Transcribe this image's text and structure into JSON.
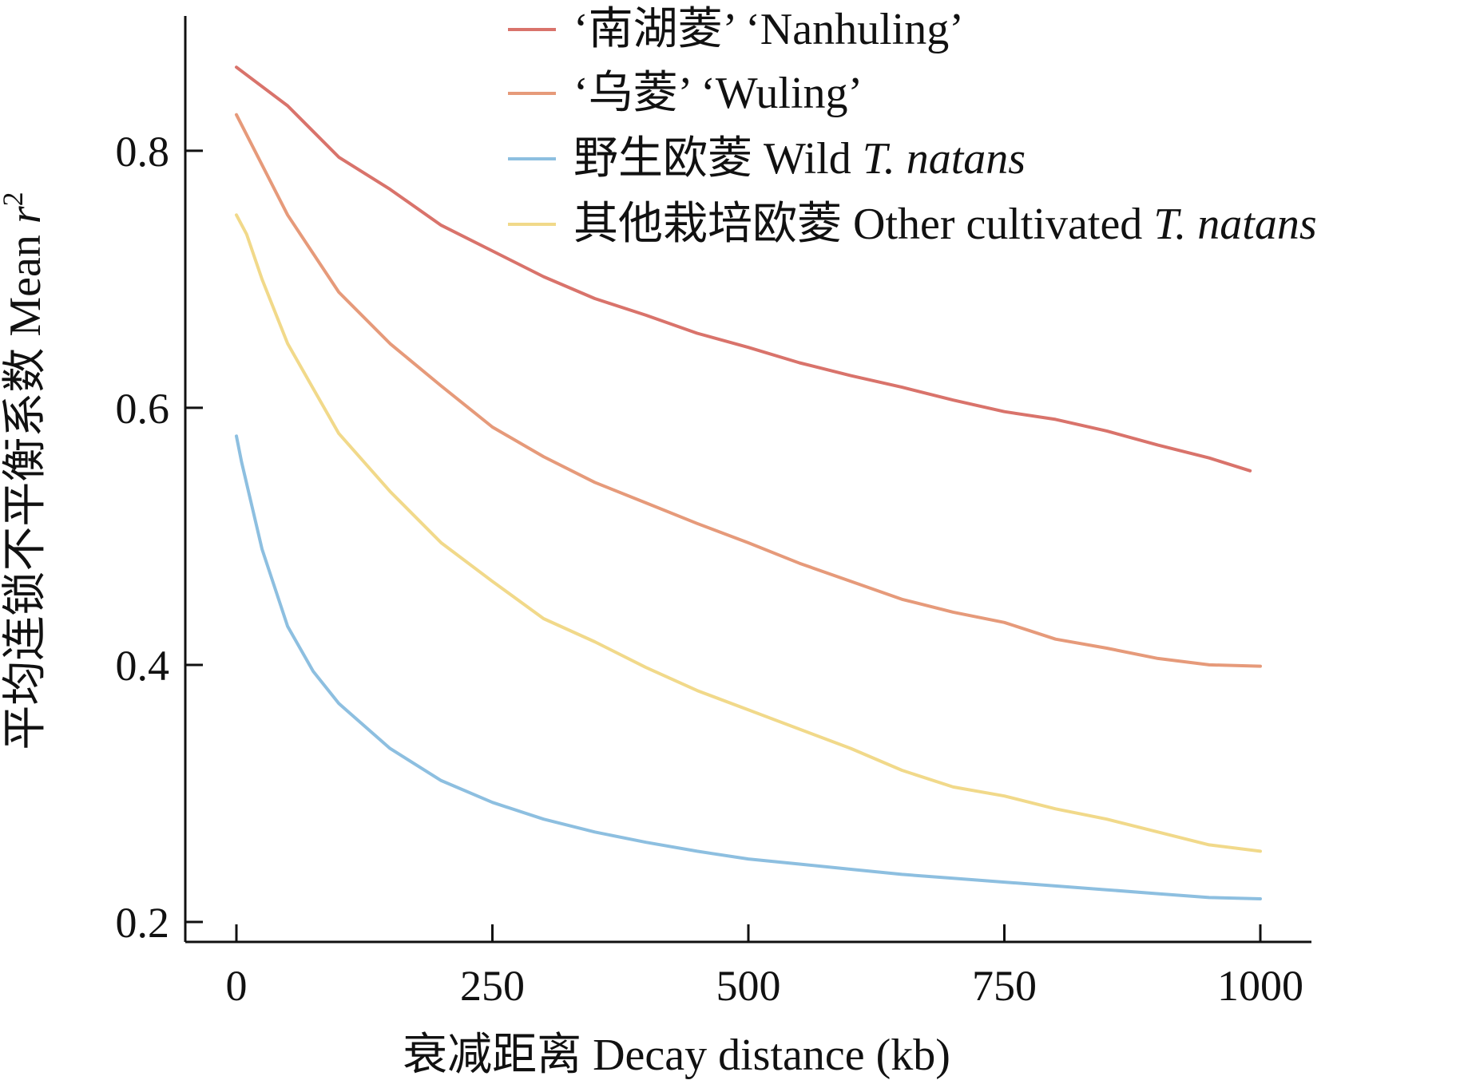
{
  "chart_data": {
    "type": "line",
    "title": "",
    "xlabel": "衰减距离 Decay distance (kb)",
    "ylabel_text": "平均连锁不平衡系数 Mean ",
    "ylabel_symbol": "r",
    "ylabel_power": "2",
    "xlim": [
      0,
      1000
    ],
    "ylim": [
      0.2,
      0.88
    ],
    "xticks": [
      0,
      250,
      500,
      750,
      1000
    ],
    "xtick_labels": [
      "0",
      "250",
      "500",
      "750",
      "1000"
    ],
    "yticks": [
      0.2,
      0.4,
      0.6,
      0.8
    ],
    "ytick_labels": [
      "0.2",
      "0.4",
      "0.6",
      "0.8"
    ],
    "grid": false,
    "legend_position": "top-right",
    "series": [
      {
        "name": "‘南湖菱’ ‘Nanhuling’",
        "color": "#d9736b",
        "x": [
          0,
          50,
          100,
          150,
          200,
          250,
          300,
          350,
          400,
          450,
          500,
          550,
          600,
          650,
          700,
          750,
          800,
          850,
          900,
          950,
          990
        ],
        "y": [
          0.865,
          0.835,
          0.795,
          0.77,
          0.742,
          0.722,
          0.702,
          0.685,
          0.672,
          0.658,
          0.647,
          0.635,
          0.625,
          0.616,
          0.606,
          0.597,
          0.591,
          0.582,
          0.571,
          0.561,
          0.551
        ]
      },
      {
        "name": "‘乌菱’ ‘Wuling’",
        "color": "#e69a7a",
        "x": [
          0,
          50,
          100,
          150,
          200,
          250,
          300,
          350,
          400,
          450,
          500,
          550,
          600,
          650,
          700,
          750,
          800,
          850,
          900,
          950,
          1000
        ],
        "y": [
          0.828,
          0.75,
          0.69,
          0.65,
          0.617,
          0.585,
          0.562,
          0.542,
          0.526,
          0.51,
          0.495,
          0.479,
          0.465,
          0.451,
          0.441,
          0.433,
          0.42,
          0.413,
          0.405,
          0.4,
          0.399
        ]
      },
      {
        "name_text": "野生欧菱 Wild ",
        "name_italic": "T. natans",
        "color": "#8dbfe0",
        "x": [
          0,
          5,
          25,
          50,
          75,
          100,
          150,
          200,
          250,
          300,
          350,
          400,
          450,
          500,
          550,
          600,
          650,
          700,
          750,
          800,
          850,
          900,
          950,
          1000
        ],
        "y": [
          0.578,
          0.558,
          0.49,
          0.43,
          0.395,
          0.37,
          0.335,
          0.31,
          0.293,
          0.28,
          0.27,
          0.262,
          0.255,
          0.249,
          0.245,
          0.241,
          0.237,
          0.234,
          0.231,
          0.228,
          0.225,
          0.222,
          0.219,
          0.218
        ]
      },
      {
        "name_text": "其他栽培欧菱 Other cultivated ",
        "name_italic": "T. natans",
        "color": "#f1d98a",
        "x": [
          0,
          10,
          25,
          50,
          75,
          100,
          150,
          200,
          250,
          300,
          350,
          400,
          450,
          500,
          550,
          600,
          650,
          700,
          750,
          800,
          850,
          900,
          950,
          1000
        ],
        "y": [
          0.75,
          0.735,
          0.7,
          0.65,
          0.615,
          0.58,
          0.535,
          0.495,
          0.465,
          0.436,
          0.418,
          0.398,
          0.38,
          0.365,
          0.35,
          0.335,
          0.318,
          0.305,
          0.298,
          0.288,
          0.28,
          0.27,
          0.26,
          0.255
        ]
      }
    ]
  }
}
